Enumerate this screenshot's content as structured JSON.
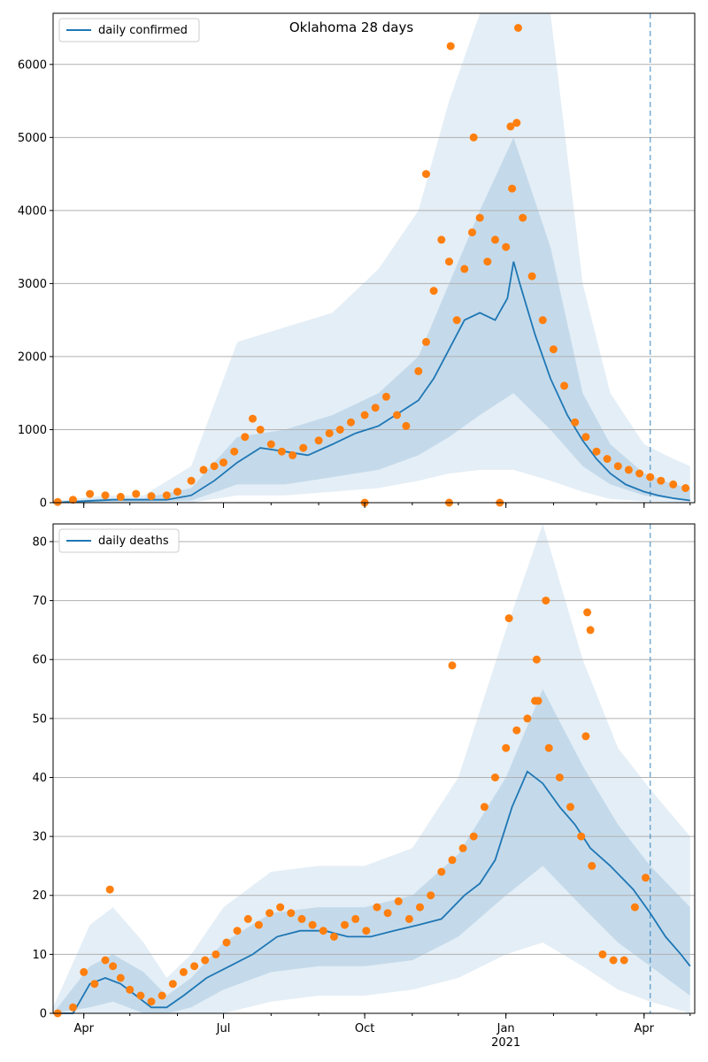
{
  "chart_data": [
    {
      "type": "scatter",
      "title": "Oklahoma 28 days",
      "xlabel": "",
      "ylabel": "",
      "ylim": [
        0,
        6700
      ],
      "yticks": [
        0,
        1000,
        2000,
        3000,
        4000,
        5000,
        6000
      ],
      "grid": "horizontal",
      "legend": {
        "position": "top-left",
        "entries": [
          "daily confirmed"
        ]
      },
      "vline": "2021-04-05",
      "series": [
        {
          "name": "daily confirmed",
          "kind": "line",
          "color": "#1f77b4",
          "x": [
            "2020-03-12",
            "2020-04-01",
            "2020-04-20",
            "2020-05-10",
            "2020-05-25",
            "2020-06-10",
            "2020-06-25",
            "2020-07-10",
            "2020-07-25",
            "2020-08-10",
            "2020-08-25",
            "2020-09-10",
            "2020-09-25",
            "2020-10-10",
            "2020-10-25",
            "2020-11-05",
            "2020-11-15",
            "2020-11-25",
            "2020-12-05",
            "2020-12-15",
            "2020-12-25",
            "2021-01-02",
            "2021-01-06",
            "2021-01-10",
            "2021-01-20",
            "2021-01-30",
            "2021-02-10",
            "2021-02-20",
            "2021-03-01",
            "2021-03-10",
            "2021-03-20",
            "2021-04-01",
            "2021-04-10",
            "2021-04-20",
            "2021-05-01"
          ],
          "values": [
            0,
            20,
            40,
            40,
            40,
            100,
            300,
            550,
            750,
            700,
            650,
            800,
            950,
            1050,
            1250,
            1400,
            1700,
            2100,
            2500,
            2600,
            2500,
            2800,
            3300,
            3000,
            2300,
            1700,
            1200,
            850,
            600,
            400,
            250,
            150,
            100,
            60,
            30
          ]
        }
      ],
      "bands": {
        "color": "#1f77b4",
        "x": [
          "2020-03-12",
          "2020-04-15",
          "2020-05-10",
          "2020-06-10",
          "2020-07-10",
          "2020-08-10",
          "2020-09-10",
          "2020-10-10",
          "2020-11-05",
          "2020-11-25",
          "2020-12-15",
          "2021-01-06",
          "2021-01-30",
          "2021-02-20",
          "2021-03-10",
          "2021-04-01",
          "2021-04-20",
          "2021-05-01"
        ],
        "upper_outer": [
          20,
          100,
          100,
          500,
          2200,
          2400,
          2600,
          3200,
          4000,
          5500,
          6700,
          6700,
          6700,
          3000,
          1500,
          800,
          600,
          500
        ],
        "lower_outer": [
          0,
          0,
          0,
          0,
          100,
          100,
          150,
          200,
          300,
          400,
          450,
          450,
          300,
          150,
          50,
          20,
          10,
          5
        ],
        "upper_inner": [
          10,
          60,
          60,
          200,
          900,
          1000,
          1200,
          1500,
          2000,
          3000,
          4000,
          5000,
          3500,
          1500,
          800,
          400,
          250,
          200
        ],
        "lower_inner": [
          0,
          5,
          10,
          30,
          250,
          250,
          350,
          450,
          650,
          900,
          1200,
          1500,
          1000,
          500,
          250,
          100,
          50,
          20
        ]
      },
      "observed": {
        "color": "#ff7f0e",
        "x": [
          "2020-03-15",
          "2020-03-25",
          "2020-04-05",
          "2020-04-15",
          "2020-04-25",
          "2020-05-05",
          "2020-05-15",
          "2020-05-25",
          "2020-06-01",
          "2020-06-10",
          "2020-06-18",
          "2020-06-25",
          "2020-07-01",
          "2020-07-08",
          "2020-07-15",
          "2020-07-20",
          "2020-07-25",
          "2020-08-01",
          "2020-08-08",
          "2020-08-15",
          "2020-08-22",
          "2020-09-01",
          "2020-09-08",
          "2020-09-15",
          "2020-09-22",
          "2020-10-01",
          "2020-10-08",
          "2020-10-15",
          "2020-10-22",
          "2020-10-28",
          "2020-11-05",
          "2020-11-10",
          "2020-11-15",
          "2020-11-20",
          "2020-11-25",
          "2020-11-30",
          "2020-12-05",
          "2020-12-10",
          "2020-12-15",
          "2020-12-20",
          "2020-12-25",
          "2021-01-01",
          "2021-01-05",
          "2021-01-08",
          "2021-01-12",
          "2021-01-18",
          "2021-01-25",
          "2021-02-01",
          "2021-02-08",
          "2021-02-15",
          "2021-02-22",
          "2021-03-01",
          "2021-03-08",
          "2021-03-15",
          "2021-03-22",
          "2021-03-29",
          "2021-04-05",
          "2021-04-12",
          "2021-04-20",
          "2021-04-28",
          "2020-11-26",
          "2021-01-09",
          "2021-01-04",
          "2020-12-11",
          "2020-11-10",
          "2020-10-01",
          "2020-11-25",
          "2020-12-28"
        ],
        "values": [
          10,
          40,
          120,
          100,
          80,
          120,
          90,
          100,
          150,
          300,
          450,
          500,
          550,
          700,
          900,
          1150,
          1000,
          800,
          700,
          650,
          750,
          850,
          950,
          1000,
          1100,
          1200,
          1300,
          1450,
          1200,
          1050,
          1800,
          2200,
          2900,
          3600,
          3300,
          2500,
          3200,
          3700,
          3900,
          3300,
          3600,
          3500,
          4300,
          5200,
          3900,
          3100,
          2500,
          2100,
          1600,
          1100,
          900,
          700,
          600,
          500,
          450,
          400,
          350,
          300,
          250,
          200,
          6250,
          6500,
          5150,
          5000,
          4500,
          0,
          0,
          0
        ]
      }
    },
    {
      "type": "scatter",
      "title": "",
      "xlabel": "",
      "ylabel": "",
      "ylim": [
        0,
        83
      ],
      "yticks": [
        0,
        10,
        20,
        30,
        40,
        50,
        60,
        70,
        80
      ],
      "grid": "horizontal",
      "legend": {
        "position": "top-left",
        "entries": [
          "daily deaths"
        ]
      },
      "vline": "2021-04-05",
      "xticks": [
        {
          "date": "2020-04-01",
          "label": "Apr"
        },
        {
          "date": "2020-07-01",
          "label": "Jul"
        },
        {
          "date": "2020-10-01",
          "label": "Oct"
        },
        {
          "date": "2021-01-01",
          "label": "Jan",
          "sublabel": "2021"
        },
        {
          "date": "2021-04-01",
          "label": "Apr"
        }
      ],
      "series": [
        {
          "name": "daily deaths",
          "kind": "line",
          "color": "#1f77b4",
          "x": [
            "2020-03-12",
            "2020-03-25",
            "2020-04-05",
            "2020-04-15",
            "2020-04-25",
            "2020-05-05",
            "2020-05-15",
            "2020-05-25",
            "2020-06-05",
            "2020-06-20",
            "2020-07-05",
            "2020-07-20",
            "2020-08-05",
            "2020-08-20",
            "2020-09-05",
            "2020-09-20",
            "2020-10-05",
            "2020-10-20",
            "2020-11-05",
            "2020-11-20",
            "2020-12-05",
            "2020-12-15",
            "2020-12-25",
            "2021-01-05",
            "2021-01-15",
            "2021-01-25",
            "2021-02-05",
            "2021-02-15",
            "2021-02-25",
            "2021-03-10",
            "2021-03-25",
            "2021-04-05",
            "2021-04-15",
            "2021-04-25",
            "2021-05-01"
          ],
          "values": [
            0,
            0,
            5,
            6,
            5,
            3,
            1,
            1,
            3,
            6,
            8,
            10,
            13,
            14,
            14,
            13,
            13,
            14,
            15,
            16,
            20,
            22,
            26,
            35,
            41,
            39,
            35,
            32,
            28,
            25,
            21,
            17,
            13,
            10,
            8
          ]
        }
      ],
      "bands": {
        "color": "#1f77b4",
        "x": [
          "2020-03-12",
          "2020-04-05",
          "2020-04-20",
          "2020-05-10",
          "2020-05-25",
          "2020-06-10",
          "2020-07-01",
          "2020-08-01",
          "2020-09-01",
          "2020-10-01",
          "2020-11-01",
          "2020-12-01",
          "2021-01-01",
          "2021-01-25",
          "2021-02-20",
          "2021-03-15",
          "2021-04-05",
          "2021-05-01"
        ],
        "upper_outer": [
          1,
          15,
          18,
          12,
          6,
          10,
          18,
          24,
          25,
          25,
          28,
          40,
          65,
          83,
          60,
          45,
          38,
          30
        ],
        "lower_outer": [
          0,
          0,
          0,
          0,
          0,
          0,
          0,
          2,
          3,
          3,
          4,
          6,
          10,
          12,
          8,
          4,
          2,
          0
        ],
        "upper_inner": [
          0,
          8,
          10,
          7,
          3,
          6,
          12,
          17,
          18,
          18,
          20,
          27,
          40,
          55,
          42,
          32,
          25,
          18
        ],
        "lower_inner": [
          0,
          1,
          2,
          0,
          0,
          1,
          4,
          7,
          8,
          8,
          9,
          13,
          20,
          25,
          18,
          12,
          8,
          3
        ]
      },
      "observed": {
        "color": "#ff7f0e",
        "x": [
          "2020-03-15",
          "2020-03-25",
          "2020-04-01",
          "2020-04-08",
          "2020-04-15",
          "2020-04-20",
          "2020-04-25",
          "2020-05-01",
          "2020-05-08",
          "2020-05-15",
          "2020-05-22",
          "2020-05-29",
          "2020-06-05",
          "2020-06-12",
          "2020-06-19",
          "2020-06-26",
          "2020-07-03",
          "2020-07-10",
          "2020-07-17",
          "2020-07-24",
          "2020-07-31",
          "2020-08-07",
          "2020-08-14",
          "2020-08-21",
          "2020-08-28",
          "2020-09-04",
          "2020-09-11",
          "2020-09-18",
          "2020-09-25",
          "2020-10-02",
          "2020-10-09",
          "2020-10-16",
          "2020-10-23",
          "2020-10-30",
          "2020-11-06",
          "2020-11-13",
          "2020-11-20",
          "2020-11-27",
          "2020-12-04",
          "2020-12-11",
          "2020-12-18",
          "2020-12-25",
          "2021-01-01",
          "2021-01-08",
          "2021-01-15",
          "2021-01-22",
          "2021-01-29",
          "2021-02-05",
          "2021-02-12",
          "2021-02-19",
          "2021-02-26",
          "2021-03-05",
          "2021-03-12",
          "2021-03-19",
          "2021-03-26",
          "2021-04-02",
          "2020-04-18",
          "2020-11-27",
          "2021-01-03",
          "2021-01-21",
          "2021-02-23",
          "2021-02-25",
          "2021-01-20",
          "2021-01-27",
          "2021-02-22"
        ],
        "values": [
          0,
          1,
          7,
          5,
          9,
          8,
          6,
          4,
          3,
          2,
          3,
          5,
          7,
          8,
          9,
          10,
          12,
          14,
          16,
          15,
          17,
          18,
          17,
          16,
          15,
          14,
          13,
          15,
          16,
          14,
          18,
          17,
          19,
          16,
          18,
          20,
          24,
          26,
          28,
          30,
          35,
          40,
          45,
          48,
          50,
          53,
          45,
          40,
          35,
          30,
          25,
          10,
          9,
          9,
          18,
          23,
          21,
          59,
          67,
          60,
          68,
          65,
          53,
          70,
          47
        ]
      }
    }
  ]
}
